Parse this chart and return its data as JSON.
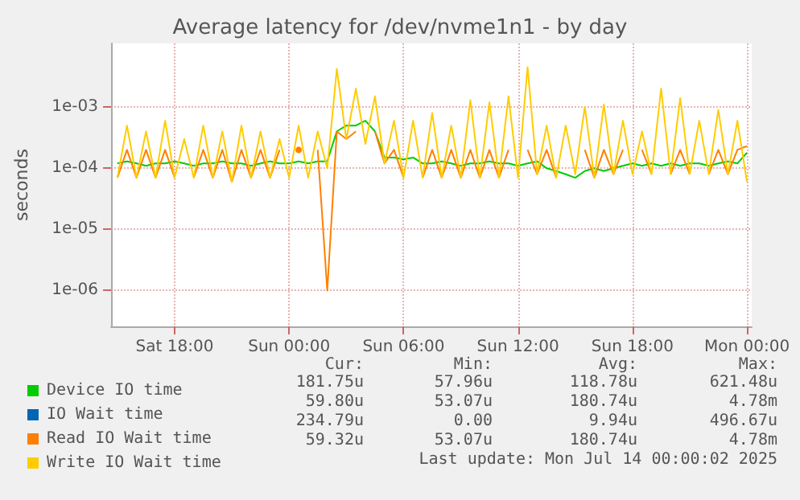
{
  "chart_data": {
    "type": "line",
    "title": "Average latency for /dev/nvme1n1 - by day",
    "ylabel": "seconds",
    "log": "y",
    "grid": true,
    "legend": "bottom left",
    "xlim": [
      "2025-07-12T14:40",
      "2025-07-14T00:15"
    ],
    "xticks": [
      {
        "value": "2025-07-12T18:00",
        "label": "Sat 18:00"
      },
      {
        "value": "2025-07-13T00:00",
        "label": "Sun 00:00"
      },
      {
        "value": "2025-07-13T06:00",
        "label": "Sun 06:00"
      },
      {
        "value": "2025-07-13T12:00",
        "label": "Sun 12:00"
      },
      {
        "value": "2025-07-13T18:00",
        "label": "Sun 18:00"
      },
      {
        "value": "2025-07-14T00:00",
        "label": "Mon 00:00"
      }
    ],
    "ylim": [
      2.6e-07,
      0.011
    ],
    "yticks": [
      {
        "value": 1e-06,
        "label": "1e-06"
      },
      {
        "value": 1e-05,
        "label": "1e-05"
      },
      {
        "value": 0.0001,
        "label": "1e-04"
      },
      {
        "value": 0.001,
        "label": "1e-03"
      }
    ],
    "x": [
      "2025-07-12T15:00",
      "2025-07-12T15:30",
      "2025-07-12T16:00",
      "2025-07-12T16:30",
      "2025-07-12T17:00",
      "2025-07-12T17:30",
      "2025-07-12T18:00",
      "2025-07-12T18:30",
      "2025-07-12T19:00",
      "2025-07-12T19:30",
      "2025-07-12T20:00",
      "2025-07-12T20:30",
      "2025-07-12T21:00",
      "2025-07-12T21:30",
      "2025-07-12T22:00",
      "2025-07-12T22:30",
      "2025-07-12T23:00",
      "2025-07-12T23:30",
      "2025-07-13T00:00",
      "2025-07-13T00:30",
      "2025-07-13T01:00",
      "2025-07-13T01:30",
      "2025-07-13T02:00",
      "2025-07-13T02:30",
      "2025-07-13T03:00",
      "2025-07-13T03:30",
      "2025-07-13T04:00",
      "2025-07-13T04:30",
      "2025-07-13T05:00",
      "2025-07-13T05:30",
      "2025-07-13T06:00",
      "2025-07-13T06:30",
      "2025-07-13T07:00",
      "2025-07-13T07:30",
      "2025-07-13T08:00",
      "2025-07-13T08:30",
      "2025-07-13T09:00",
      "2025-07-13T09:30",
      "2025-07-13T10:00",
      "2025-07-13T10:30",
      "2025-07-13T11:00",
      "2025-07-13T11:30",
      "2025-07-13T12:00",
      "2025-07-13T12:30",
      "2025-07-13T13:00",
      "2025-07-13T13:30",
      "2025-07-13T14:00",
      "2025-07-13T14:30",
      "2025-07-13T15:00",
      "2025-07-13T15:30",
      "2025-07-13T16:00",
      "2025-07-13T16:30",
      "2025-07-13T17:00",
      "2025-07-13T17:30",
      "2025-07-13T18:00",
      "2025-07-13T18:30",
      "2025-07-13T19:00",
      "2025-07-13T19:30",
      "2025-07-13T20:00",
      "2025-07-13T20:30",
      "2025-07-13T21:00",
      "2025-07-13T21:30",
      "2025-07-13T22:00",
      "2025-07-13T22:30",
      "2025-07-13T23:00",
      "2025-07-13T23:30",
      "2025-07-14T00:00"
    ],
    "series": [
      {
        "name": "Device IO time",
        "color": "#00cc00",
        "values": [
          0.00012,
          0.00013,
          0.00012,
          0.00011,
          0.00012,
          0.00012,
          0.00013,
          0.00012,
          0.00011,
          0.00012,
          0.00012,
          0.00013,
          0.00012,
          0.00012,
          0.00011,
          0.00012,
          0.00013,
          0.00012,
          0.00012,
          0.00013,
          0.00012,
          0.00013,
          0.00013,
          0.0004,
          0.0005,
          0.0005,
          0.0006,
          0.0004,
          0.00015,
          0.00015,
          0.00014,
          0.00015,
          0.00012,
          0.00012,
          0.00013,
          0.00012,
          0.00011,
          0.00012,
          0.00012,
          0.00013,
          0.00012,
          0.00012,
          0.00011,
          0.00012,
          0.00013,
          0.0001,
          9e-05,
          8e-05,
          7e-05,
          9e-05,
          0.0001,
          9e-05,
          0.0001,
          0.00011,
          0.00012,
          0.00011,
          0.00012,
          0.00011,
          0.00012,
          0.00011,
          0.00012,
          0.00012,
          0.00011,
          0.00012,
          0.00013,
          0.00012,
          0.00018
        ]
      },
      {
        "name": "IO Wait time",
        "color": "#0066b3",
        "values": [
          null,
          null,
          null,
          null,
          null,
          null,
          null,
          null,
          null,
          null,
          null,
          null,
          null,
          null,
          null,
          null,
          null,
          null,
          null,
          null,
          null,
          null,
          null,
          null,
          null,
          null,
          null,
          null,
          null,
          null,
          null,
          null,
          null,
          null,
          null,
          null,
          null,
          null,
          null,
          null,
          null,
          null,
          null,
          null,
          null,
          null,
          null,
          null,
          null,
          null,
          null,
          null,
          null,
          null,
          null,
          null,
          null,
          null,
          null,
          null,
          null,
          null,
          null,
          null,
          null,
          null,
          null
        ]
      },
      {
        "name": "Read IO Wait time",
        "color": "#ff8000",
        "values": [
          7e-05,
          0.0002,
          7e-05,
          0.0002,
          7e-05,
          0.0002,
          7e-05,
          null,
          7e-05,
          0.0002,
          7e-05,
          0.0002,
          6e-05,
          0.0002,
          7e-05,
          0.0002,
          7e-05,
          0.0002,
          null,
          0.0002,
          null,
          0.0002,
          1e-06,
          0.0004,
          0.0003,
          0.0004,
          null,
          0.0004,
          0.00012,
          0.0002,
          7e-05,
          null,
          7e-05,
          0.0002,
          7e-05,
          0.0002,
          7e-05,
          0.0002,
          7e-05,
          0.0002,
          7e-05,
          0.0002,
          null,
          0.0002,
          8e-05,
          0.0002,
          7e-05,
          null,
          null,
          0.0002,
          7e-05,
          0.0002,
          8e-05,
          0.0002,
          null,
          0.0002,
          8e-05,
          null,
          8e-05,
          0.0002,
          8e-05,
          null,
          8e-05,
          0.0002,
          8e-05,
          0.0002,
          0.00023
        ]
      },
      {
        "name": "Write IO Wait time",
        "color": "#ffcc00",
        "values": [
          7e-05,
          0.0005,
          7e-05,
          0.0004,
          7e-05,
          0.0006,
          7e-05,
          0.0003,
          7e-05,
          0.0005,
          7e-05,
          0.0004,
          6e-05,
          0.0005,
          7e-05,
          0.0004,
          7e-05,
          0.0003,
          7e-05,
          0.0005,
          7e-05,
          0.0004,
          0.0001,
          0.0042,
          0.0003,
          0.002,
          0.00025,
          0.0015,
          0.00012,
          0.0006,
          7e-05,
          0.0006,
          7e-05,
          0.0008,
          7e-05,
          0.0005,
          7e-05,
          0.0013,
          7e-05,
          0.0012,
          7e-05,
          0.0015,
          7e-05,
          0.0045,
          8e-05,
          0.0005,
          7e-05,
          0.0005,
          8e-05,
          0.001,
          7e-05,
          0.0011,
          8e-05,
          0.0006,
          8e-05,
          0.0004,
          8e-05,
          0.002,
          8e-05,
          0.0014,
          8e-05,
          0.0006,
          8e-05,
          0.0009,
          8e-05,
          0.0006,
          6e-05
        ]
      }
    ],
    "annotations": [
      "Cur:",
      "Min:",
      "Avg:",
      "Max:",
      "181.75u",
      "57.96u",
      "118.78u",
      "621.48u",
      "59.80u",
      "53.07u",
      "180.74u",
      "4.78m",
      "234.79u",
      "0.00",
      "9.94u",
      "496.67u",
      "59.32u",
      "53.07u",
      "180.74u",
      "4.78m",
      "Last update: Mon Jul 14 00:00:02 2025"
    ]
  }
}
